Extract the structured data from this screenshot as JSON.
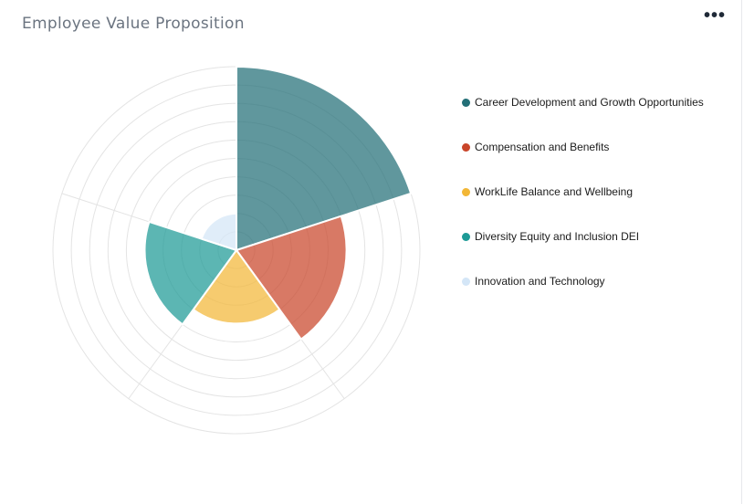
{
  "card": {
    "title": "Employee Value Proposition",
    "menu_glyph": "•••"
  },
  "chart_data": {
    "type": "polar-area",
    "title": "Employee Value Proposition",
    "rmax": 10,
    "grid_rings": 10,
    "categories": [
      "Career Development and Growth Opportunities",
      "Compensation and Benefits",
      "WorkLife Balance and Wellbeing",
      "Diversity Equity and Inclusion DEI",
      "Innovation and Technology"
    ],
    "values": [
      10,
      6,
      4,
      5,
      2
    ],
    "colors": [
      "#236f77",
      "#c9452a",
      "#f2b737",
      "#1d9a96",
      "#d4e6f7"
    ],
    "legend_position": "right"
  }
}
